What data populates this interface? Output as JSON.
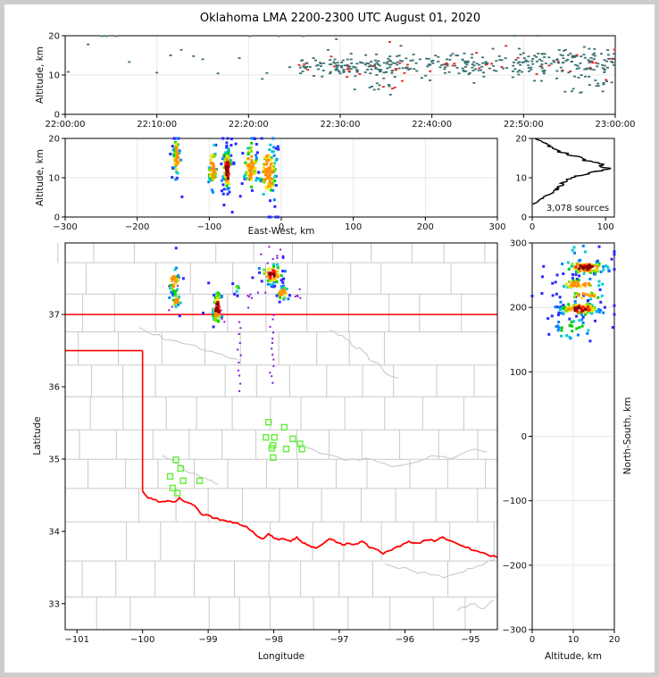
{
  "figure": {
    "title": "Oklahoma LMA 2200-2300 UTC August 01, 2020",
    "background": "#ffffff",
    "frame_color": "#cdcdcd"
  },
  "colors": {
    "grid": "#e7e7e7",
    "spine": "#000000",
    "density_palette": [
      "#2929ff",
      "#0080ff",
      "#00ccd0",
      "#00d000",
      "#80e000",
      "#ffe000",
      "#ff9000",
      "#ff1a00",
      "#8b0000"
    ]
  },
  "chart_data": [
    {
      "id": "time_altitude",
      "type": "scatter",
      "ylabel": "Altitude, km",
      "xlabel": "",
      "xlim": [
        0,
        3600
      ],
      "ylim": [
        0,
        20
      ],
      "grid": true,
      "xticks": {
        "values": [
          0,
          600,
          1200,
          1800,
          2400,
          3000,
          3600
        ],
        "labels": [
          "22:00:00",
          "22:10:00",
          "22:20:00",
          "22:30:00",
          "22:40:00",
          "22:50:00",
          "23:00:00"
        ]
      },
      "yticks": {
        "values": [
          0,
          10,
          20
        ],
        "labels": [
          "0",
          "10",
          "20"
        ]
      },
      "colors": {
        "main": "#3a7070",
        "accent": "#e12820"
      },
      "accent_fraction": 0.12,
      "bands": [
        {
          "t0": 1520,
          "t1": 2260,
          "alt": 12.0,
          "sd": 1.25,
          "n": 150
        },
        {
          "t0": 1960,
          "t1": 2160,
          "alt": 7.2,
          "sd": 1.1,
          "n": 13
        },
        {
          "t0": 2260,
          "t1": 2890,
          "alt": 12.6,
          "sd": 1.7,
          "n": 90
        },
        {
          "t0": 2890,
          "t1": 3600,
          "alt": 13.0,
          "sd": 1.9,
          "n": 150
        },
        {
          "t0": 3220,
          "t1": 3600,
          "alt": 6.8,
          "sd": 1.3,
          "n": 13
        },
        {
          "t0": 1500,
          "t1": 3600,
          "alt": 12.5,
          "sd": 2.8,
          "n": 30
        }
      ],
      "singles": [
        [
          20,
          10.8
        ],
        [
          150,
          17.8
        ],
        [
          240,
          19.9
        ],
        [
          270,
          19.9
        ],
        [
          330,
          19.9
        ],
        [
          420,
          13.3
        ],
        [
          600,
          10.6
        ],
        [
          690,
          15.0
        ],
        [
          760,
          16.4
        ],
        [
          840,
          14.8
        ],
        [
          900,
          14.0
        ],
        [
          1000,
          10.4
        ],
        [
          1140,
          14.3
        ],
        [
          1210,
          19.9
        ],
        [
          1290,
          9.0
        ],
        [
          1320,
          10.5
        ],
        [
          1400,
          19.9
        ],
        [
          1470,
          12.0
        ],
        [
          1560,
          19.9
        ]
      ]
    },
    {
      "id": "ew_altitude",
      "type": "scatter",
      "ylabel": "Altitude, km",
      "xlabel": "East-West, km",
      "xlim": [
        -300,
        300
      ],
      "ylim": [
        0,
        20
      ],
      "grid": true,
      "xticks": {
        "values": [
          -300,
          -200,
          -100,
          0,
          100,
          200,
          300
        ],
        "labels": [
          "−300",
          "−200",
          "−100",
          "0",
          "100",
          "200",
          "300"
        ]
      },
      "yticks": {
        "values": [
          0,
          10,
          20
        ],
        "labels": [
          "0",
          "10",
          "20"
        ]
      },
      "clusters": [
        {
          "cx": -145,
          "cy": 15.2,
          "sx": 2.5,
          "sy": 2.6,
          "n": 55
        },
        {
          "cx": -95,
          "cy": 12.5,
          "sx": 3.0,
          "sy": 2.6,
          "n": 48
        },
        {
          "cx": -75,
          "cy": 12.0,
          "sx": 3.0,
          "sy": 2.9,
          "n": 100,
          "hot": true
        },
        {
          "cx": -42,
          "cy": 13.0,
          "sx": 4.5,
          "sy": 3.2,
          "n": 75
        },
        {
          "cx": -18,
          "cy": 11.5,
          "sx": 6.0,
          "sy": 3.5,
          "n": 100
        }
      ]
    },
    {
      "id": "altitude_histogram",
      "type": "line",
      "annotation": "3,078 sources",
      "line_color": "#000000",
      "xlim": [
        0,
        112
      ],
      "ylim": [
        0,
        20
      ],
      "grid": false,
      "xticks": {
        "values": [
          0,
          100
        ],
        "labels": [
          "0",
          "100"
        ]
      },
      "yticks": {
        "values": [
          0,
          10,
          20
        ],
        "labels": [
          "0",
          "10",
          "20"
        ]
      },
      "profile": [
        [
          3.2,
          1
        ],
        [
          3.6,
          4
        ],
        [
          4,
          8
        ],
        [
          4.4,
          10
        ],
        [
          4.8,
          14
        ],
        [
          5.2,
          16
        ],
        [
          5.6,
          20
        ],
        [
          6,
          26
        ],
        [
          6.4,
          30
        ],
        [
          6.8,
          33
        ],
        [
          7.2,
          36
        ],
        [
          7.6,
          34
        ],
        [
          8,
          40
        ],
        [
          8.4,
          44
        ],
        [
          8.8,
          42
        ],
        [
          9.2,
          48
        ],
        [
          9.6,
          52
        ],
        [
          10,
          56
        ],
        [
          10.4,
          62
        ],
        [
          10.8,
          70
        ],
        [
          11.2,
          78
        ],
        [
          11.6,
          88
        ],
        [
          12,
          100
        ],
        [
          12.4,
          105
        ],
        [
          12.8,
          98
        ],
        [
          13.2,
          92
        ],
        [
          13.6,
          94
        ],
        [
          14,
          78
        ],
        [
          14.4,
          74
        ],
        [
          14.8,
          68
        ],
        [
          15.2,
          72
        ],
        [
          15.6,
          58
        ],
        [
          16,
          48
        ],
        [
          16.4,
          42
        ],
        [
          16.8,
          34
        ],
        [
          17.2,
          30
        ],
        [
          17.6,
          26
        ],
        [
          18,
          24
        ],
        [
          18.4,
          20
        ],
        [
          18.8,
          18
        ],
        [
          19.2,
          14
        ],
        [
          19.6,
          8
        ],
        [
          20,
          4
        ]
      ]
    },
    {
      "id": "map",
      "type": "scatter",
      "xlabel": "Longitude",
      "ylabel": "Latitude",
      "xlim": [
        -101.18,
        -94.59
      ],
      "ylim": [
        32.64,
        37.99
      ],
      "grid": false,
      "xticks": {
        "values": [
          -101,
          -100,
          -99,
          -98,
          -97,
          -96,
          -95
        ],
        "labels": [
          "−101",
          "−100",
          "−99",
          "−98",
          "−97",
          "−96",
          "−95"
        ]
      },
      "yticks": {
        "values": [
          33,
          34,
          35,
          36,
          37
        ],
        "labels": [
          "33",
          "34",
          "35",
          "36",
          "37"
        ]
      },
      "county_color": "#c9c9c9",
      "river_color": "#c9c9c9",
      "border_color": "#ff0000",
      "purple": "#8812dd",
      "green": "#61ef3a",
      "clusters": [
        {
          "cx": -99.52,
          "cy": 37.45,
          "sx": 0.035,
          "sy": 0.09,
          "n": 30
        },
        {
          "cx": -99.48,
          "cy": 37.2,
          "sx": 0.03,
          "sy": 0.05,
          "n": 18
        },
        {
          "cx": -98.86,
          "cy": 37.08,
          "sx": 0.04,
          "sy": 0.13,
          "n": 52,
          "hot": true
        },
        {
          "cx": -98.02,
          "cy": 37.56,
          "sx": 0.09,
          "sy": 0.07,
          "n": 60,
          "hot": true
        },
        {
          "cx": -97.86,
          "cy": 37.3,
          "sx": 0.05,
          "sy": 0.05,
          "n": 26
        },
        {
          "cx": -98.56,
          "cy": 37.36,
          "sx": 0.03,
          "sy": 0.04,
          "n": 9,
          "cool": true
        }
      ],
      "purple_trails": [
        {
          "lon": -98.52,
          "lat0": 35.95,
          "lat1": 36.9,
          "n": 11
        },
        {
          "lon": -98.03,
          "lat0": 36.05,
          "lat1": 37.0,
          "n": 13
        }
      ],
      "purple_boxes": [
        [
          -98.4,
          -98.1,
          37.05,
          37.35,
          7
        ],
        [
          -98.2,
          -97.8,
          37.7,
          37.95,
          8
        ],
        [
          -99.62,
          -99.4,
          37.0,
          37.6,
          6
        ],
        [
          -98.95,
          -98.75,
          36.85,
          37.35,
          6
        ],
        [
          -97.75,
          -97.55,
          37.15,
          37.35,
          5
        ]
      ],
      "green_squares": [
        [
          -99.49,
          34.99
        ],
        [
          -99.42,
          34.87
        ],
        [
          -99.58,
          34.76
        ],
        [
          -99.38,
          34.7
        ],
        [
          -99.54,
          34.6
        ],
        [
          -99.47,
          34.53
        ],
        [
          -99.13,
          34.7
        ],
        [
          -98.08,
          35.51
        ],
        [
          -97.84,
          35.44
        ],
        [
          -98.12,
          35.3
        ],
        [
          -97.99,
          35.3
        ],
        [
          -97.71,
          35.28
        ],
        [
          -97.6,
          35.21
        ],
        [
          -98.01,
          35.19
        ],
        [
          -98.03,
          35.15
        ],
        [
          -97.81,
          35.14
        ],
        [
          -97.57,
          35.14
        ],
        [
          -98.01,
          35.02
        ]
      ],
      "state_lines": {
        "kansas_lat": 37.0,
        "texas_lat": 36.5,
        "texas_lon": -100.0,
        "texas_corner_lat": 34.56
      },
      "red_river": [
        [
          -100.0,
          34.56
        ],
        [
          -99.92,
          34.47
        ],
        [
          -99.84,
          34.44
        ],
        [
          -99.72,
          34.4
        ],
        [
          -99.62,
          34.43
        ],
        [
          -99.52,
          34.4
        ],
        [
          -99.44,
          34.46
        ],
        [
          -99.36,
          34.42
        ],
        [
          -99.26,
          34.39
        ],
        [
          -99.18,
          34.32
        ],
        [
          -99.1,
          34.24
        ],
        [
          -99.0,
          34.22
        ],
        [
          -98.9,
          34.18
        ],
        [
          -98.78,
          34.16
        ],
        [
          -98.66,
          34.13
        ],
        [
          -98.55,
          34.11
        ],
        [
          -98.45,
          34.08
        ],
        [
          -98.35,
          34.02
        ],
        [
          -98.25,
          33.94
        ],
        [
          -98.16,
          33.9
        ],
        [
          -98.08,
          33.97
        ],
        [
          -98.0,
          33.91
        ],
        [
          -97.92,
          33.88
        ],
        [
          -97.83,
          33.9
        ],
        [
          -97.74,
          33.86
        ],
        [
          -97.65,
          33.92
        ],
        [
          -97.56,
          33.84
        ],
        [
          -97.46,
          33.8
        ],
        [
          -97.36,
          33.76
        ],
        [
          -97.25,
          33.82
        ],
        [
          -97.15,
          33.89
        ],
        [
          -97.05,
          33.86
        ],
        [
          -96.95,
          33.81
        ],
        [
          -96.85,
          33.84
        ],
        [
          -96.75,
          33.82
        ],
        [
          -96.65,
          33.86
        ],
        [
          -96.55,
          33.79
        ],
        [
          -96.45,
          33.76
        ],
        [
          -96.33,
          33.7
        ],
        [
          -96.2,
          33.74
        ],
        [
          -96.07,
          33.8
        ],
        [
          -95.94,
          33.86
        ],
        [
          -95.81,
          33.83
        ],
        [
          -95.68,
          33.88
        ],
        [
          -95.55,
          33.87
        ],
        [
          -95.42,
          33.92
        ],
        [
          -95.29,
          33.87
        ],
        [
          -95.16,
          33.81
        ],
        [
          -95.03,
          33.77
        ],
        [
          -94.9,
          33.72
        ],
        [
          -94.75,
          33.68
        ],
        [
          -94.59,
          33.64
        ]
      ],
      "rivers": [
        [
          [
            -100.05,
            36.82
          ],
          [
            -99.75,
            36.7
          ],
          [
            -99.5,
            36.62
          ],
          [
            -99.2,
            36.55
          ],
          [
            -98.95,
            36.5
          ],
          [
            -98.72,
            36.42
          ],
          [
            -98.55,
            36.38
          ]
        ],
        [
          [
            -97.15,
            36.78
          ],
          [
            -96.95,
            36.7
          ],
          [
            -96.8,
            36.58
          ],
          [
            -96.62,
            36.5
          ],
          [
            -96.55,
            36.38
          ],
          [
            -96.4,
            36.3
          ],
          [
            -96.28,
            36.18
          ],
          [
            -96.1,
            36.12
          ]
        ],
        [
          [
            -99.7,
            35.05
          ],
          [
            -99.5,
            34.95
          ],
          [
            -99.35,
            34.85
          ],
          [
            -99.18,
            34.78
          ],
          [
            -99.0,
            34.7
          ],
          [
            -98.85,
            34.65
          ]
        ],
        [
          [
            -97.7,
            35.25
          ],
          [
            -97.4,
            35.12
          ],
          [
            -97.1,
            35.05
          ],
          [
            -96.8,
            34.98
          ],
          [
            -96.5,
            35.02
          ],
          [
            -96.2,
            34.9
          ],
          [
            -95.9,
            34.95
          ],
          [
            -95.6,
            35.05
          ],
          [
            -95.3,
            35.02
          ],
          [
            -95.0,
            35.12
          ],
          [
            -94.75,
            35.1
          ]
        ],
        [
          [
            -96.3,
            33.55
          ],
          [
            -96.0,
            33.48
          ],
          [
            -95.7,
            33.42
          ],
          [
            -95.4,
            33.38
          ],
          [
            -95.1,
            33.45
          ],
          [
            -94.9,
            33.52
          ],
          [
            -94.65,
            33.6
          ]
        ],
        [
          [
            -95.2,
            32.9
          ],
          [
            -95.0,
            33.0
          ],
          [
            -94.8,
            32.95
          ],
          [
            -94.65,
            33.05
          ]
        ]
      ]
    },
    {
      "id": "ns_altitude",
      "type": "scatter",
      "xlabel": "Altitude, km",
      "ylabel": "North-South, km",
      "xlim": [
        0,
        20
      ],
      "ylim": [
        -300,
        300
      ],
      "grid": true,
      "xticks": {
        "values": [
          0,
          10,
          20
        ],
        "labels": [
          "0",
          "10",
          "20"
        ]
      },
      "yticks": {
        "values": [
          -300,
          -200,
          -100,
          0,
          100,
          200,
          300
        ],
        "labels": [
          "−300",
          "−200",
          "−100",
          "0",
          "100",
          "200",
          "300"
        ]
      },
      "clusters": [
        {
          "cx": 13.0,
          "cy": 262,
          "sx": 2.6,
          "sy": 5,
          "n": 90,
          "hot": true
        },
        {
          "cx": 11.5,
          "cy": 236,
          "sx": 3.0,
          "sy": 4,
          "n": 42
        },
        {
          "cx": 13.0,
          "cy": 218,
          "sx": 2.4,
          "sy": 3,
          "n": 20
        },
        {
          "cx": 11.5,
          "cy": 198,
          "sx": 2.6,
          "sy": 5,
          "n": 120,
          "hot": true
        },
        {
          "cx": 9.5,
          "cy": 168,
          "sx": 2.8,
          "sy": 11,
          "n": 30,
          "cool": true
        },
        {
          "cx": 12.0,
          "cy": 290,
          "sx": 3.0,
          "sy": 4,
          "n": 8,
          "cool": true
        }
      ]
    }
  ]
}
